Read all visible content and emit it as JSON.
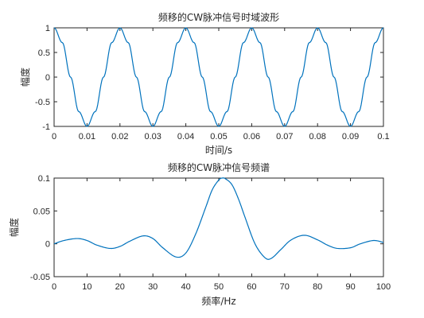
{
  "chart_data": [
    {
      "type": "line",
      "title": "频移的CW脉冲信号时域波形",
      "xlabel": "时间/s",
      "ylabel": "幅度",
      "xlim": [
        0,
        0.1
      ],
      "ylim": [
        -1,
        1
      ],
      "xticks": [
        0,
        0.01,
        0.02,
        0.03,
        0.04,
        0.05,
        0.06,
        0.07,
        0.08,
        0.09,
        0.1
      ],
      "xtick_labels": [
        "0",
        "0.01",
        "0.02",
        "0.03",
        "0.04",
        "0.05",
        "0.06",
        "0.07",
        "0.08",
        "0.09",
        "0.1"
      ],
      "yticks": [
        -1,
        -0.5,
        0,
        0.5,
        1
      ],
      "ytick_labels": [
        "-1",
        "-0.5",
        "0",
        "0.5",
        "1"
      ],
      "grid": false,
      "series": [
        {
          "color": "#0072BD",
          "x": [
            0,
            0.0025,
            0.005,
            0.0075,
            0.01,
            0.0125,
            0.015,
            0.0175,
            0.02,
            0.0225,
            0.025,
            0.0275,
            0.03,
            0.0325,
            0.035,
            0.0375,
            0.04,
            0.0425,
            0.045,
            0.0475,
            0.05,
            0.0525,
            0.055,
            0.0575,
            0.06,
            0.0625,
            0.065,
            0.0675,
            0.07,
            0.0725,
            0.075,
            0.0775,
            0.08,
            0.0825,
            0.085,
            0.0875,
            0.09,
            0.0925,
            0.095,
            0.0975,
            0.1
          ],
          "y": [
            1,
            0.7,
            0,
            -0.7,
            -1,
            -0.7,
            0,
            0.7,
            1,
            0.7,
            0,
            -0.7,
            -1,
            -0.7,
            0,
            0.7,
            1,
            0.7,
            0,
            -0.7,
            -1,
            -0.7,
            0,
            0.7,
            1,
            0.7,
            0,
            -0.7,
            -1,
            -0.7,
            0,
            0.7,
            1,
            0.7,
            0,
            -0.7,
            -1,
            -0.7,
            0,
            0.7,
            1
          ]
        }
      ]
    },
    {
      "type": "line",
      "title": "频移的CW脉冲信号频谱",
      "xlabel": "频率/Hz",
      "ylabel": "幅度",
      "xlim": [
        0,
        100
      ],
      "ylim": [
        -0.05,
        0.1
      ],
      "xticks": [
        0,
        10,
        20,
        30,
        40,
        50,
        60,
        70,
        80,
        90,
        100
      ],
      "xtick_labels": [
        "0",
        "10",
        "20",
        "30",
        "40",
        "50",
        "60",
        "70",
        "80",
        "90",
        "100"
      ],
      "yticks": [
        -0.05,
        0,
        0.05,
        0.1
      ],
      "ytick_labels": [
        "-0.05",
        "0",
        "0.05",
        "0.1"
      ],
      "grid": false,
      "series": [
        {
          "color": "#0072BD",
          "x": [
            0,
            3,
            7,
            10,
            13,
            17,
            20,
            23,
            27,
            30,
            33,
            37,
            40,
            43,
            46,
            48,
            50,
            51,
            52,
            54,
            56,
            58,
            61,
            64,
            66,
            69,
            72,
            76,
            80,
            83,
            86,
            90,
            93,
            97,
            100
          ],
          "y": [
            0,
            0.005,
            0.008,
            0.005,
            -0.002,
            -0.007,
            -0.004,
            0.004,
            0.012,
            0.008,
            -0.006,
            -0.02,
            -0.014,
            0.015,
            0.055,
            0.082,
            0.097,
            0.1,
            0.099,
            0.09,
            0.068,
            0.04,
            0.0,
            -0.021,
            -0.022,
            -0.008,
            0.006,
            0.013,
            0.006,
            -0.002,
            -0.007,
            -0.006,
            0.0,
            0.005,
            0.002
          ]
        }
      ]
    }
  ]
}
